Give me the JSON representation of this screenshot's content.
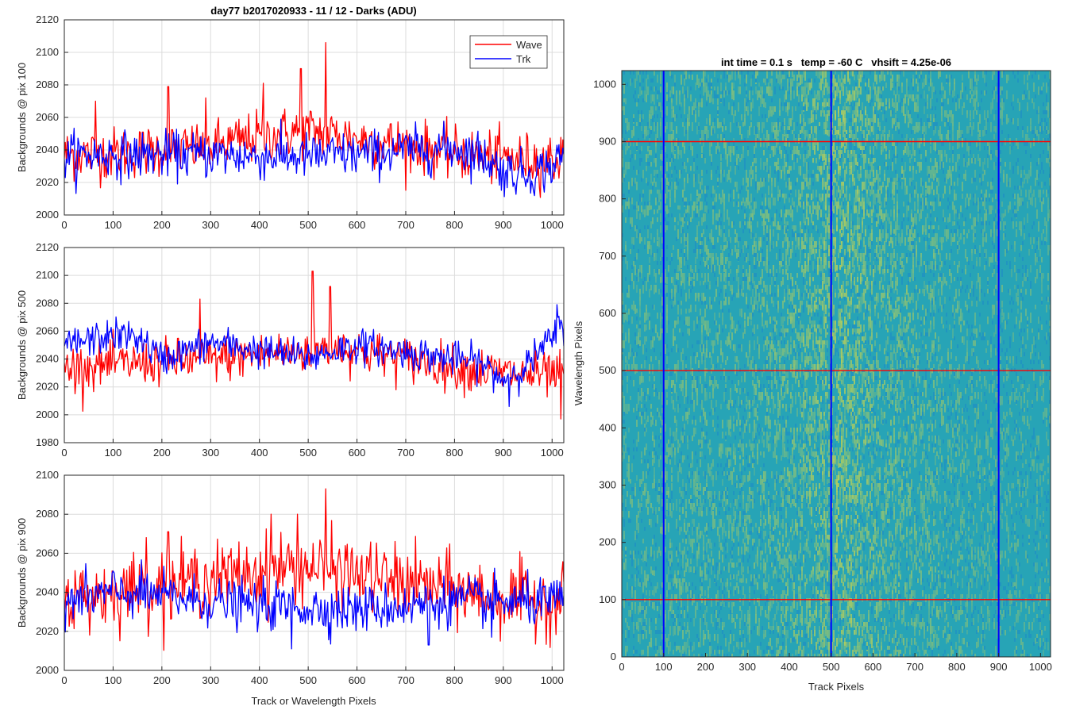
{
  "chart_data": [
    {
      "type": "line",
      "title": "day77 b2017020933 - 11 / 12 - Darks (ADU)",
      "xlabel": "",
      "ylabel": "Backgrounds @ pix 100",
      "xlim": [
        0,
        1024
      ],
      "ylim": [
        2000,
        2120
      ],
      "xticks": [
        0,
        100,
        200,
        300,
        400,
        500,
        600,
        700,
        800,
        900,
        1000
      ],
      "yticks": [
        2000,
        2020,
        2040,
        2060,
        2080,
        2100,
        2120
      ],
      "grid": true,
      "legend": {
        "position": "top-right",
        "entries": [
          "Wave",
          "Trk"
        ]
      },
      "series": [
        {
          "name": "Wave",
          "color": "#ff0000",
          "knots_x": [
            0,
            100,
            200,
            300,
            400,
            450,
            500,
            550,
            600,
            700,
            800,
            850,
            900,
            950,
            1024
          ],
          "knots_y": [
            2037,
            2038,
            2040,
            2042,
            2048,
            2050,
            2052,
            2050,
            2047,
            2043,
            2038,
            2036,
            2035,
            2034,
            2034
          ],
          "noise_sd": 8,
          "spikes": [
            [
              536,
              2106
            ],
            [
              64,
              2070
            ],
            [
              213,
              2079
            ],
            [
              485,
              2090
            ],
            [
              408,
              2081
            ],
            [
              290,
              2072
            ]
          ]
        },
        {
          "name": "Trk",
          "color": "#0000ff",
          "knots_x": [
            0,
            100,
            200,
            300,
            400,
            500,
            600,
            700,
            800,
            850,
            900,
            950,
            1000,
            1024
          ],
          "knots_y": [
            2037,
            2037,
            2037,
            2037,
            2036,
            2036,
            2037,
            2040,
            2041,
            2038,
            2027,
            2025,
            2030,
            2037
          ],
          "noise_sd": 7,
          "spikes": []
        }
      ]
    },
    {
      "type": "line",
      "title": "",
      "xlabel": "",
      "ylabel": "Backgrounds @ pix 500",
      "xlim": [
        0,
        1024
      ],
      "ylim": [
        1980,
        2120
      ],
      "xticks": [
        0,
        100,
        200,
        300,
        400,
        500,
        600,
        700,
        800,
        900,
        1000
      ],
      "yticks": [
        1980,
        2000,
        2020,
        2040,
        2060,
        2080,
        2100,
        2120
      ],
      "grid": true,
      "series": [
        {
          "name": "Wave",
          "color": "#ff0000",
          "knots_x": [
            0,
            100,
            200,
            300,
            400,
            500,
            550,
            600,
            700,
            800,
            900,
            1000,
            1024
          ],
          "knots_y": [
            2034,
            2036,
            2038,
            2040,
            2043,
            2046,
            2050,
            2046,
            2040,
            2034,
            2030,
            2028,
            2028
          ],
          "noise_sd": 8,
          "spikes": [
            [
              509,
              2103
            ],
            [
              545,
              2092
            ],
            [
              278,
              2083
            ],
            [
              1018,
              1997
            ]
          ]
        },
        {
          "name": "Trk",
          "color": "#0000ff",
          "knots_x": [
            0,
            100,
            150,
            200,
            300,
            400,
            500,
            600,
            700,
            800,
            850,
            900,
            950,
            1000,
            1024
          ],
          "knots_y": [
            2050,
            2057,
            2056,
            2040,
            2052,
            2046,
            2041,
            2050,
            2045,
            2040,
            2038,
            2025,
            2036,
            2055,
            2065
          ],
          "noise_sd": 6,
          "spikes": [
            [
              1010,
              2079
            ],
            [
              912,
              2006
            ]
          ]
        }
      ]
    },
    {
      "type": "line",
      "title": "",
      "xlabel": "Track or Wavelength Pixels",
      "ylabel": "Backgrounds @ pix 900",
      "xlim": [
        0,
        1024
      ],
      "ylim": [
        2000,
        2100
      ],
      "xticks": [
        0,
        100,
        200,
        300,
        400,
        500,
        600,
        700,
        800,
        900,
        1000
      ],
      "yticks": [
        2000,
        2020,
        2040,
        2060,
        2080,
        2100
      ],
      "grid": true,
      "series": [
        {
          "name": "Wave",
          "color": "#ff0000",
          "knots_x": [
            0,
            100,
            200,
            300,
            400,
            450,
            500,
            550,
            600,
            700,
            800,
            900,
            1024
          ],
          "knots_y": [
            2036,
            2040,
            2044,
            2047,
            2050,
            2053,
            2053,
            2052,
            2049,
            2045,
            2041,
            2037,
            2035
          ],
          "noise_sd": 9,
          "spikes": [
            [
              536,
              2093
            ],
            [
              478,
              2080
            ],
            [
              424,
              2080
            ],
            [
              168,
              2068
            ],
            [
              213,
              2071
            ]
          ]
        },
        {
          "name": "Trk",
          "color": "#0000ff",
          "knots_x": [
            0,
            100,
            200,
            300,
            400,
            500,
            600,
            700,
            800,
            900,
            1000,
            1024
          ],
          "knots_y": [
            2035,
            2040,
            2038,
            2035,
            2033,
            2032,
            2031,
            2033,
            2036,
            2035,
            2035,
            2035
          ],
          "noise_sd": 6,
          "spikes": [
            [
              466,
              2011
            ],
            [
              747,
              2013
            ],
            [
              876,
              2017
            ]
          ]
        }
      ]
    },
    {
      "type": "heatmap",
      "title": "int time = 0.1 s   temp = -60 C   vhsift = 4.25e-06",
      "xlabel": "Track Pixels",
      "ylabel": "Wavelength Pixels",
      "xlim": [
        0,
        1024
      ],
      "ylim": [
        0,
        1024
      ],
      "xticks": [
        0,
        100,
        200,
        300,
        400,
        500,
        600,
        700,
        800,
        900,
        1000
      ],
      "yticks": [
        0,
        100,
        200,
        300,
        400,
        500,
        600,
        700,
        800,
        900,
        1000
      ],
      "colormap": {
        "base": "#27a4b6",
        "high": "#b8cf5a",
        "low": "#1f8ec4"
      },
      "column_intensity_knots_x": [
        0,
        100,
        200,
        300,
        400,
        480,
        520,
        560,
        620,
        700,
        800,
        900,
        1024
      ],
      "column_intensity_knots_v": [
        0.25,
        0.3,
        0.3,
        0.32,
        0.4,
        0.55,
        0.65,
        0.55,
        0.42,
        0.35,
        0.28,
        0.22,
        0.18
      ],
      "vertical_lines": {
        "x": [
          100,
          500,
          900
        ],
        "color": "#0000ff"
      },
      "horizontal_lines": {
        "y": [
          100,
          500,
          900
        ],
        "color": "#ff0000"
      }
    }
  ]
}
